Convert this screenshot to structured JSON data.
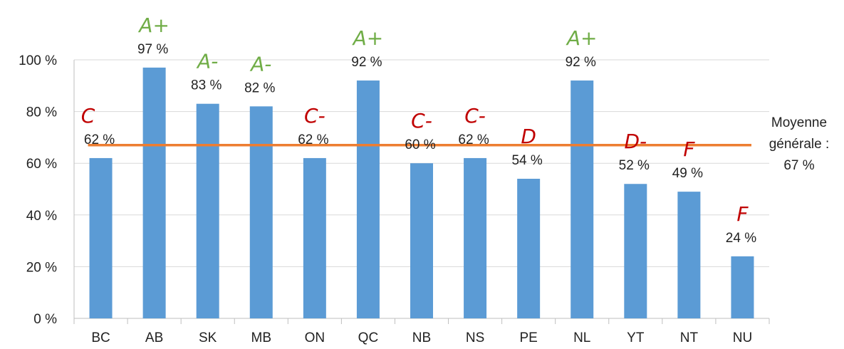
{
  "chart_data": {
    "type": "bar",
    "title": "",
    "xlabel": "",
    "ylabel": "",
    "ylim": [
      0,
      100
    ],
    "y_ticks": [
      0,
      20,
      40,
      60,
      80,
      100
    ],
    "y_tick_labels": [
      "0 %",
      "20 %",
      "40 %",
      "60 %",
      "80 %",
      "100 %"
    ],
    "grid": true,
    "categories": [
      "BC",
      "AB",
      "SK",
      "MB",
      "ON",
      "QC",
      "NB",
      "NS",
      "PE",
      "NL",
      "YT",
      "NT",
      "NU"
    ],
    "values": [
      62,
      97,
      83,
      82,
      62,
      92,
      60,
      62,
      54,
      92,
      52,
      49,
      24
    ],
    "data_labels": [
      "62 %",
      "97 %",
      "83 %",
      "82 %",
      "62 %",
      "92 %",
      "60 %",
      "62 %",
      "54 %",
      "92 %",
      "52 %",
      "49 %",
      "24 %"
    ],
    "grades": [
      "C",
      "A+",
      "A-",
      "A-",
      "C-",
      "A+",
      "C-",
      "C-",
      "D",
      "A+",
      "D-",
      "F",
      "F"
    ],
    "average": {
      "value": 67,
      "label_lines": [
        "Moyenne",
        "générale :",
        "67 %"
      ]
    },
    "colors": {
      "bar": "#5b9bd5",
      "average_line": "#ed7d31",
      "grade_pass": "#70ad47",
      "grade_fail": "#c00000",
      "grid": "#d9d9d9",
      "axis": "#bfbfbf"
    }
  }
}
